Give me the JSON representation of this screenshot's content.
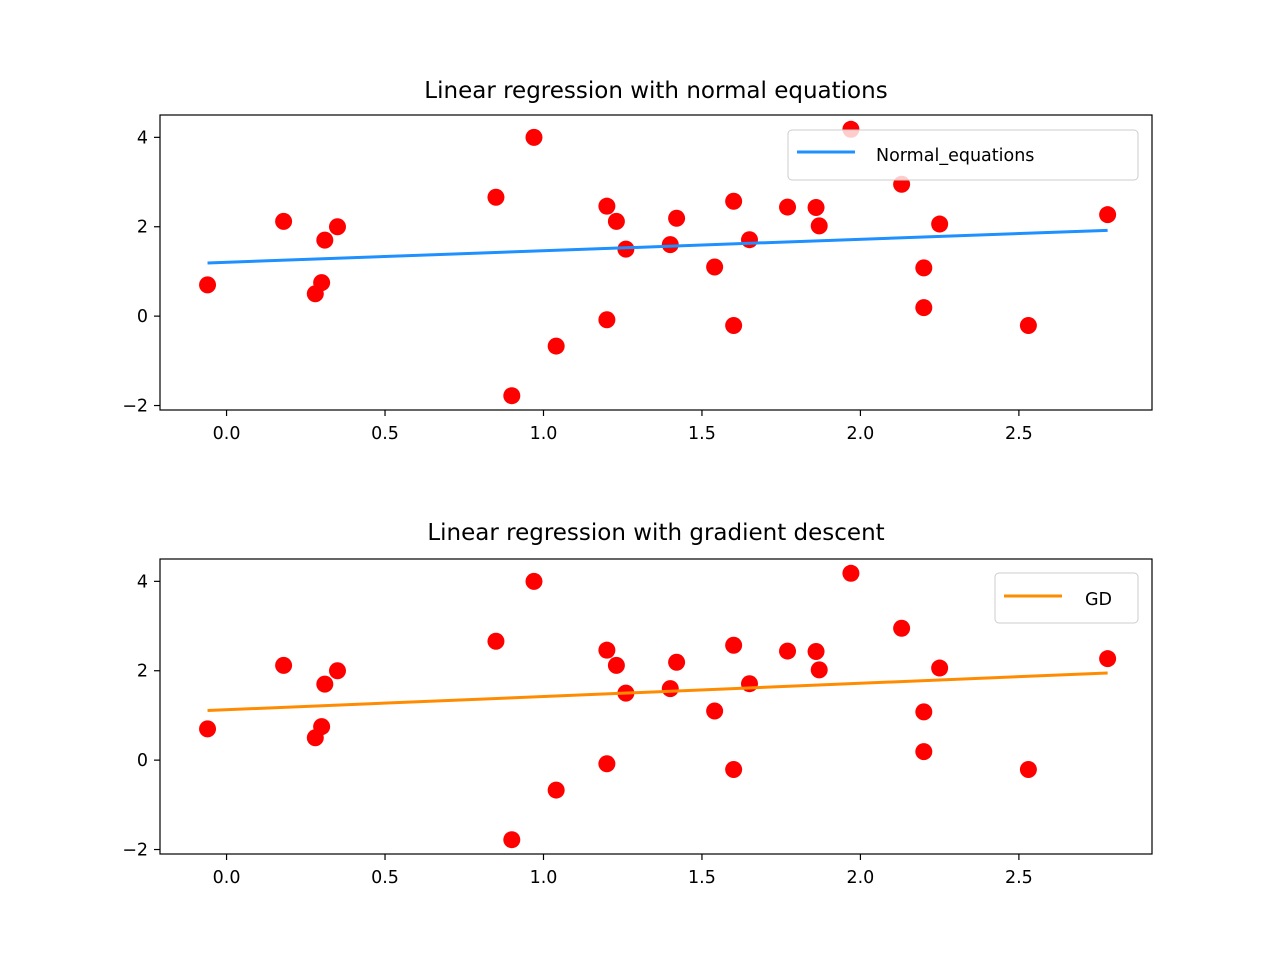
{
  "chart_data": [
    {
      "type": "scatter",
      "title": "Linear regression with normal equations",
      "xlabel": "",
      "ylabel": "",
      "xlim": [
        -0.21,
        2.92
      ],
      "ylim": [
        -2.1,
        4.5
      ],
      "xticks": [
        0.0,
        0.5,
        1.0,
        1.5,
        2.0,
        2.5
      ],
      "xtick_labels": [
        "0.0",
        "0.5",
        "1.0",
        "1.5",
        "2.0",
        "2.5"
      ],
      "yticks": [
        -2,
        0,
        2,
        4
      ],
      "ytick_labels": [
        "−2",
        "0",
        "2",
        "4"
      ],
      "grid": false,
      "legend_position": "upper-right",
      "scatter": {
        "color": "#ff0000",
        "points": [
          [
            -0.06,
            0.7
          ],
          [
            0.18,
            2.12
          ],
          [
            0.28,
            0.5
          ],
          [
            0.3,
            0.75
          ],
          [
            0.31,
            1.7
          ],
          [
            0.35,
            2.0
          ],
          [
            0.85,
            2.66
          ],
          [
            0.9,
            -1.78
          ],
          [
            0.97,
            4.0
          ],
          [
            1.04,
            -0.67
          ],
          [
            1.2,
            2.46
          ],
          [
            1.2,
            -0.08
          ],
          [
            1.23,
            2.12
          ],
          [
            1.26,
            1.5
          ],
          [
            1.4,
            1.6
          ],
          [
            1.42,
            2.19
          ],
          [
            1.54,
            1.1
          ],
          [
            1.6,
            2.57
          ],
          [
            1.6,
            -0.21
          ],
          [
            1.65,
            1.71
          ],
          [
            1.77,
            2.44
          ],
          [
            1.86,
            2.43
          ],
          [
            1.87,
            2.02
          ],
          [
            1.97,
            4.18
          ],
          [
            2.13,
            2.95
          ],
          [
            2.2,
            1.08
          ],
          [
            2.2,
            0.19
          ],
          [
            2.25,
            2.06
          ],
          [
            2.53,
            -0.21
          ],
          [
            2.78,
            2.27
          ]
        ]
      },
      "series": [
        {
          "name": "Normal_equations",
          "type": "line",
          "color": "#1e90ff",
          "x": [
            -0.06,
            2.78
          ],
          "y": [
            1.19,
            1.92
          ]
        }
      ]
    },
    {
      "type": "scatter",
      "title": "Linear regression with gradient descent",
      "xlabel": "",
      "ylabel": "",
      "xlim": [
        -0.21,
        2.92
      ],
      "ylim": [
        -2.1,
        4.5
      ],
      "xticks": [
        0.0,
        0.5,
        1.0,
        1.5,
        2.0,
        2.5
      ],
      "xtick_labels": [
        "0.0",
        "0.5",
        "1.0",
        "1.5",
        "2.0",
        "2.5"
      ],
      "yticks": [
        -2,
        0,
        2,
        4
      ],
      "ytick_labels": [
        "−2",
        "0",
        "2",
        "4"
      ],
      "grid": false,
      "legend_position": "upper-right",
      "scatter": {
        "color": "#ff0000",
        "points": [
          [
            -0.06,
            0.7
          ],
          [
            0.18,
            2.12
          ],
          [
            0.28,
            0.5
          ],
          [
            0.3,
            0.75
          ],
          [
            0.31,
            1.7
          ],
          [
            0.35,
            2.0
          ],
          [
            0.85,
            2.66
          ],
          [
            0.9,
            -1.78
          ],
          [
            0.97,
            4.0
          ],
          [
            1.04,
            -0.67
          ],
          [
            1.2,
            2.46
          ],
          [
            1.2,
            -0.08
          ],
          [
            1.23,
            2.12
          ],
          [
            1.26,
            1.5
          ],
          [
            1.4,
            1.6
          ],
          [
            1.42,
            2.19
          ],
          [
            1.54,
            1.1
          ],
          [
            1.6,
            2.57
          ],
          [
            1.6,
            -0.21
          ],
          [
            1.65,
            1.71
          ],
          [
            1.77,
            2.44
          ],
          [
            1.86,
            2.43
          ],
          [
            1.87,
            2.02
          ],
          [
            1.97,
            4.18
          ],
          [
            2.13,
            2.95
          ],
          [
            2.2,
            1.08
          ],
          [
            2.2,
            0.19
          ],
          [
            2.25,
            2.06
          ],
          [
            2.53,
            -0.21
          ],
          [
            2.78,
            2.27
          ]
        ]
      },
      "series": [
        {
          "name": "GD",
          "type": "line",
          "color": "#ff8c00",
          "x": [
            -0.06,
            2.78
          ],
          "y": [
            1.11,
            1.95
          ]
        }
      ]
    }
  ]
}
